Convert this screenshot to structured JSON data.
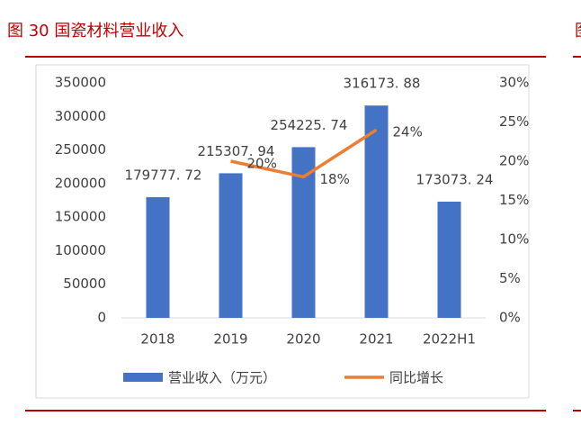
{
  "caption": "图 30 国瓷材料营业收入",
  "side_caption": "图",
  "chart_data": {
    "type": "bar",
    "categories": [
      "2018",
      "2019",
      "2020",
      "2021",
      "2022H1"
    ],
    "series": [
      {
        "name": "营业收入（万元）",
        "type": "bar",
        "color": "#4472c4",
        "values": [
          179777.72,
          215307.94,
          254225.74,
          316173.88,
          173073.24
        ],
        "value_labels": [
          "179777. 72",
          "215307. 94",
          "254225. 74",
          "316173. 88",
          "173073. 24"
        ]
      },
      {
        "name": "同比增长",
        "type": "line",
        "axis": "y2",
        "color": "#ed7d31",
        "values": [
          null,
          20,
          18,
          24,
          null
        ],
        "value_labels": [
          null,
          "20%",
          "18%",
          "24%",
          null
        ]
      }
    ],
    "ylim": [
      0,
      350000
    ],
    "yticks": [
      0,
      50000,
      100000,
      150000,
      200000,
      250000,
      300000,
      350000
    ],
    "y2lim": [
      0,
      30
    ],
    "y2ticks": [
      {
        "value": 0,
        "label": "0%"
      },
      {
        "value": 5,
        "label": "5%"
      },
      {
        "value": 10,
        "label": "10%"
      },
      {
        "value": 15,
        "label": "15%"
      },
      {
        "value": 20,
        "label": "20%"
      },
      {
        "value": 25,
        "label": "25%"
      },
      {
        "value": 30,
        "label": "30%"
      }
    ],
    "grid": false,
    "legend": "bottom"
  }
}
